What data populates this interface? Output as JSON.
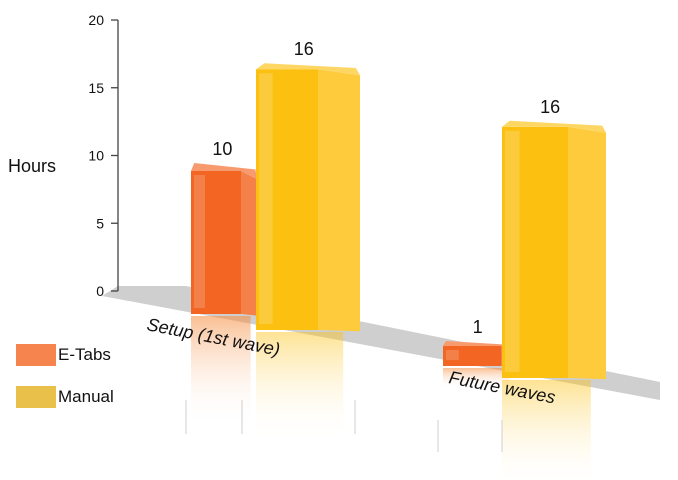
{
  "chart_data": {
    "type": "bar",
    "ylabel": "Hours",
    "xlabel": "",
    "ylim": [
      0,
      20
    ],
    "yticks": [
      0,
      5,
      10,
      15,
      20
    ],
    "categories": [
      "Setup (1st wave)",
      "Future waves"
    ],
    "series": [
      {
        "name": "E-Tabs",
        "values": [
          10,
          1
        ],
        "color": "#f26522"
      },
      {
        "name": "Manual",
        "values": [
          16,
          16
        ],
        "color": "#fcc010"
      }
    ],
    "legend": "bottom-left",
    "grid": false,
    "style": "3d-perspective"
  }
}
